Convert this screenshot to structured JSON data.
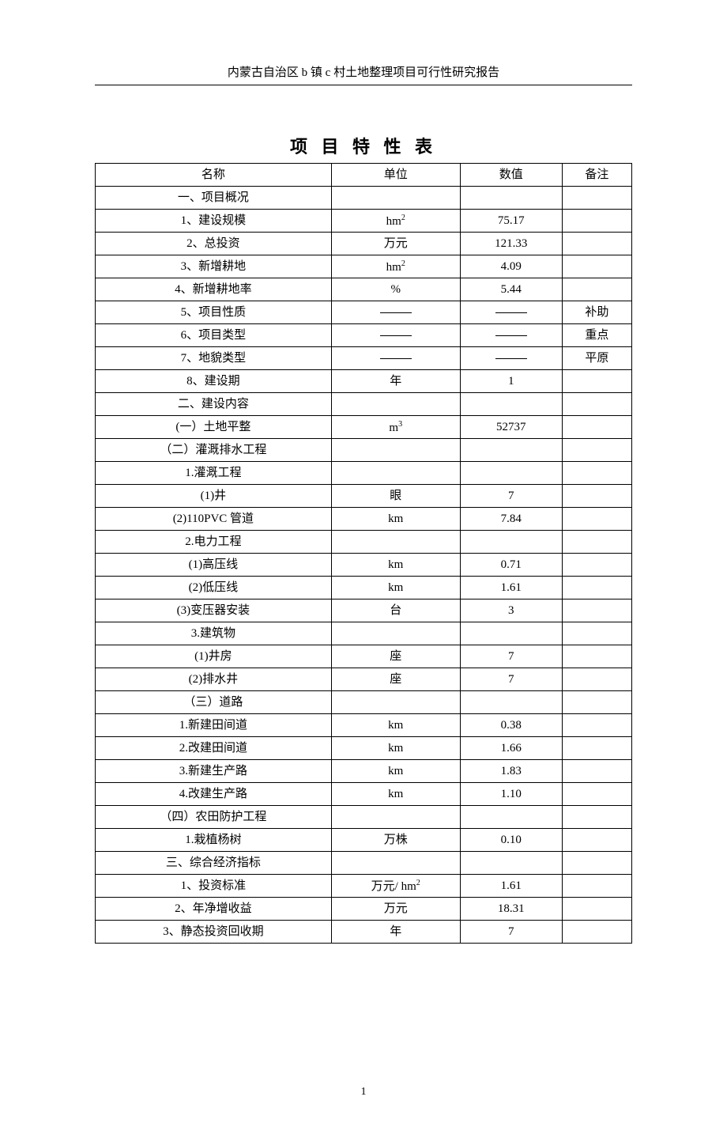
{
  "doc": {
    "header": "内蒙古自治区 b 镇 c 村土地整理项目可行性研究报告",
    "table_title": "项 目 特 性 表",
    "page_number": "1"
  },
  "table": {
    "columns": [
      "名称",
      "单位",
      "数值",
      "备注"
    ],
    "col_widths_pct": [
      44,
      24,
      19,
      13
    ],
    "border_color": "#000000",
    "background_color": "#ffffff",
    "text_color": "#000000",
    "fontsize": 15,
    "rows": [
      {
        "name": "一、项目概况",
        "unit": "",
        "value": "",
        "note": ""
      },
      {
        "name": "1、建设规模",
        "unit_html": "hm<sup>2</sup>",
        "value": "75.17",
        "note": ""
      },
      {
        "name": "2、总投资",
        "unit": "万元",
        "value": "121.33",
        "note": ""
      },
      {
        "name": "3、新增耕地",
        "unit_html": "hm<sup>2</sup>",
        "value": "4.09",
        "note": ""
      },
      {
        "name": "4、新增耕地率",
        "unit": "%",
        "value": "5.44",
        "note": ""
      },
      {
        "name": "5、项目性质",
        "unit_dash": true,
        "value_dash": true,
        "note": "补助"
      },
      {
        "name": "6、项目类型",
        "unit_dash": true,
        "value_dash": true,
        "note": "重点"
      },
      {
        "name": "7、地貌类型",
        "unit_dash": true,
        "value_dash": true,
        "note": "平原"
      },
      {
        "name": "8、建设期",
        "unit": "年",
        "value": "1",
        "note": ""
      },
      {
        "name": "二、建设内容",
        "unit": "",
        "value": "",
        "note": ""
      },
      {
        "name": "(一）土地平整",
        "unit_html": "m<sup>3</sup>",
        "value": "52737",
        "note": ""
      },
      {
        "name": "（二）灌溉排水工程",
        "unit": "",
        "value": "",
        "note": ""
      },
      {
        "name": "1.灌溉工程",
        "unit": "",
        "value": "",
        "note": ""
      },
      {
        "name": "(1)井",
        "unit": "眼",
        "value": "7",
        "note": ""
      },
      {
        "name": "(2)110PVC 管道",
        "unit": "km",
        "value": "7.84",
        "note": ""
      },
      {
        "name": "2.电力工程",
        "unit": "",
        "value": "",
        "note": ""
      },
      {
        "name": "(1)高压线",
        "unit": "km",
        "value": "0.71",
        "note": ""
      },
      {
        "name": "(2)低压线",
        "unit": "km",
        "value": "1.61",
        "note": ""
      },
      {
        "name": "(3)变压器安装",
        "unit": "台",
        "value": "3",
        "note": ""
      },
      {
        "name": "3.建筑物",
        "unit": "",
        "value": "",
        "note": ""
      },
      {
        "name": "(1)井房",
        "unit": "座",
        "value": "7",
        "note": ""
      },
      {
        "name": "(2)排水井",
        "unit": "座",
        "value": "7",
        "note": ""
      },
      {
        "name": "（三）道路",
        "unit": "",
        "value": "",
        "note": ""
      },
      {
        "name": "1.新建田间道",
        "unit": "km",
        "value": "0.38",
        "note": ""
      },
      {
        "name": "2.改建田间道",
        "unit": "km",
        "value": "1.66",
        "note": ""
      },
      {
        "name": "3.新建生产路",
        "unit": "km",
        "value": "1.83",
        "note": ""
      },
      {
        "name": "4.改建生产路",
        "unit": "km",
        "value": "1.10",
        "note": ""
      },
      {
        "name": "（四）农田防护工程",
        "unit": "",
        "value": "",
        "note": ""
      },
      {
        "name": "1.栽植杨树",
        "unit": "万株",
        "value": "0.10",
        "note": ""
      },
      {
        "name": "三、综合经济指标",
        "unit": "",
        "value": "",
        "note": ""
      },
      {
        "name": "1、投资标准",
        "unit_html": "万元/ hm<sup>2</sup>",
        "value": "1.61",
        "note": ""
      },
      {
        "name": "2、年净增收益",
        "unit": "万元",
        "value": "18.31",
        "note": ""
      },
      {
        "name": "3、静态投资回收期",
        "unit": "年",
        "value": "7",
        "note": ""
      }
    ]
  }
}
